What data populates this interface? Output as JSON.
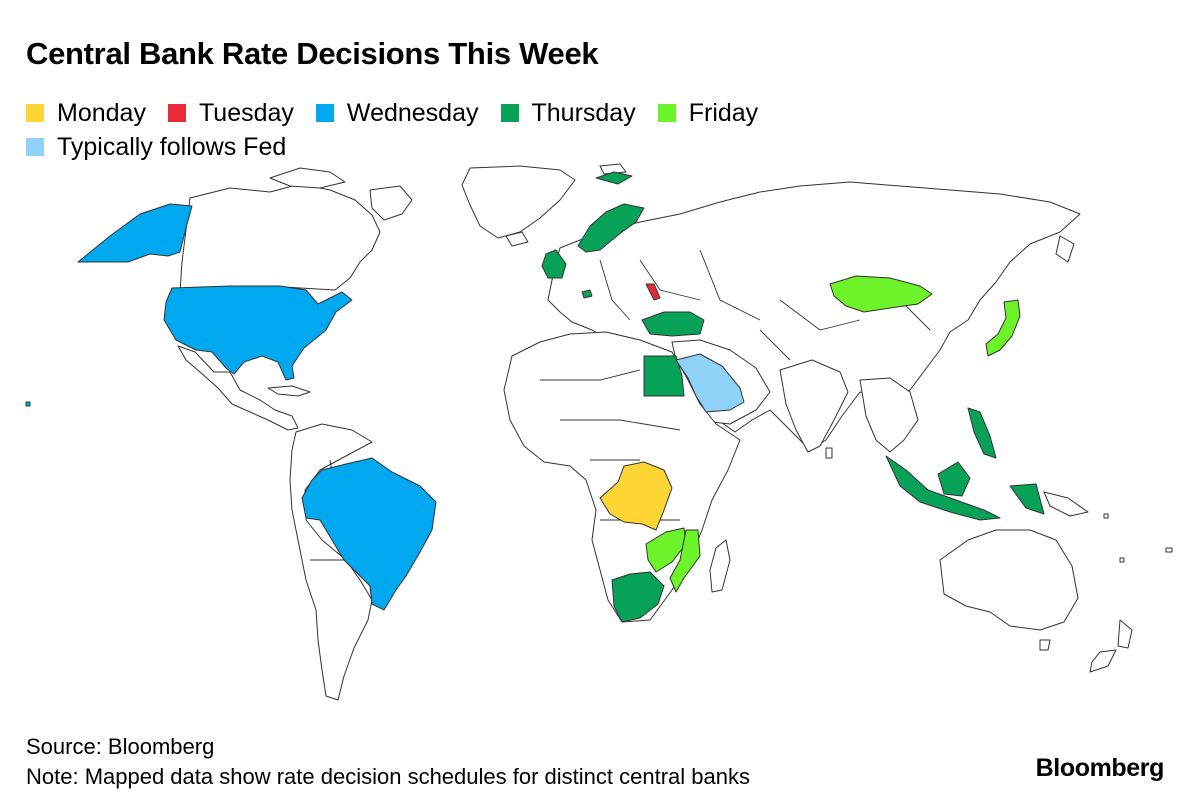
{
  "title": "Central Bank Rate Decisions This Week",
  "legend": [
    {
      "label": "Monday",
      "color": "#fdd535"
    },
    {
      "label": "Tuesday",
      "color": "#e8293a"
    },
    {
      "label": "Wednesday",
      "color": "#00a8f0"
    },
    {
      "label": "Thursday",
      "color": "#07a258"
    },
    {
      "label": "Friday",
      "color": "#6df32a"
    },
    {
      "label": "Typically follows Fed",
      "color": "#8ed2f8"
    }
  ],
  "colors": {
    "base": "#ffffff",
    "border": "#333333"
  },
  "footer": {
    "source": "Source: Bloomberg",
    "note": "Note: Mapped data show rate decision schedules for distinct central banks"
  },
  "brand": "Bloomberg"
}
